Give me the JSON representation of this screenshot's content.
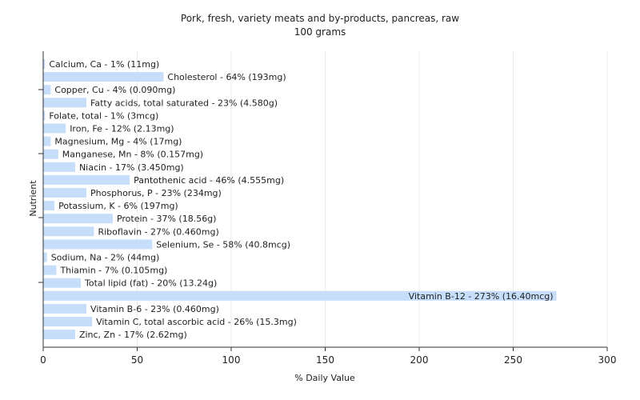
{
  "chart_data": {
    "type": "bar",
    "orientation": "horizontal",
    "title": "Pork, fresh, variety meats and by-products, pancreas, raw",
    "subtitle": "100 grams",
    "xlabel": "% Daily Value",
    "ylabel": "Nutrient",
    "xlim": [
      0,
      300
    ],
    "xticks": [
      0,
      50,
      100,
      150,
      200,
      250,
      300
    ],
    "grid": true,
    "bar_color": "#c6defa",
    "categories": [
      "Calcium, Ca",
      "Cholesterol",
      "Copper, Cu",
      "Fatty acids, total saturated",
      "Folate, total",
      "Iron, Fe",
      "Magnesium, Mg",
      "Manganese, Mn",
      "Niacin",
      "Pantothenic acid",
      "Phosphorus, P",
      "Potassium, K",
      "Protein",
      "Riboflavin",
      "Selenium, Se",
      "Sodium, Na",
      "Thiamin",
      "Total lipid (fat)",
      "Vitamin B-12",
      "Vitamin B-6",
      "Vitamin C, total ascorbic acid",
      "Zinc, Zn"
    ],
    "values": [
      1,
      64,
      4,
      23,
      1,
      12,
      4,
      8,
      17,
      46,
      23,
      6,
      37,
      27,
      58,
      2,
      7,
      20,
      273,
      23,
      26,
      17
    ],
    "labels": [
      "Calcium, Ca - 1% (11mg)",
      "Cholesterol - 64% (193mg)",
      "Copper, Cu - 4% (0.090mg)",
      "Fatty acids, total saturated - 23% (4.580g)",
      "Folate, total - 1% (3mcg)",
      "Iron, Fe - 12% (2.13mg)",
      "Magnesium, Mg - 4% (17mg)",
      "Manganese, Mn - 8% (0.157mg)",
      "Niacin - 17% (3.450mg)",
      "Pantothenic acid - 46% (4.555mg)",
      "Phosphorus, P - 23% (234mg)",
      "Potassium, K - 6% (197mg)",
      "Protein - 37% (18.56g)",
      "Riboflavin - 27% (0.460mg)",
      "Selenium, Se - 58% (40.8mcg)",
      "Sodium, Na - 2% (44mg)",
      "Thiamin - 7% (0.105mg)",
      "Total lipid (fat) - 20% (13.24g)",
      "Vitamin B-12 - 273% (16.40mcg)",
      "Vitamin B-6 - 23% (0.460mg)",
      "Vitamin C, total ascorbic acid - 26% (15.3mg)",
      "Zinc, Zn - 17% (2.62mg)"
    ]
  }
}
